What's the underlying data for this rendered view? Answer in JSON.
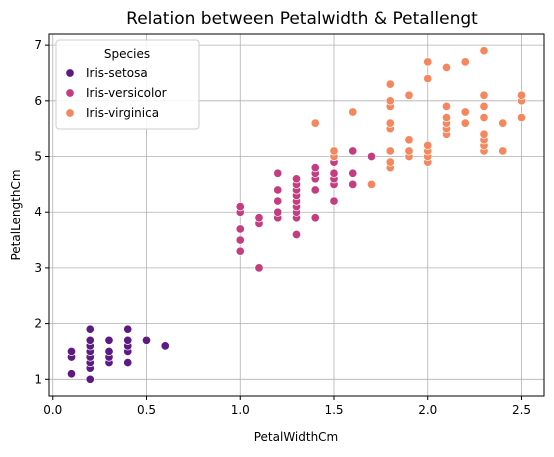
{
  "chart_data": {
    "type": "scatter",
    "title": "Relation between Petalwidth & Petallengt",
    "xlabel": "PetalWidthCm",
    "ylabel": "PetalLengthCm",
    "xlim": [
      -0.02,
      2.62
    ],
    "ylim": [
      0.7,
      7.2
    ],
    "xticks": [
      "0.0",
      "0.5",
      "1.0",
      "1.5",
      "2.0",
      "2.5"
    ],
    "yticks": [
      "1",
      "2",
      "3",
      "4",
      "5",
      "6",
      "7"
    ],
    "grid": true,
    "legend": {
      "title": "Species",
      "placement": "top-left"
    },
    "series": [
      {
        "name": "Iris-setosa",
        "color": "#5c1a83",
        "points": [
          [
            0.1,
            1.1
          ],
          [
            0.1,
            1.4
          ],
          [
            0.1,
            1.5
          ],
          [
            0.2,
            1.0
          ],
          [
            0.2,
            1.2
          ],
          [
            0.2,
            1.3
          ],
          [
            0.2,
            1.4
          ],
          [
            0.2,
            1.5
          ],
          [
            0.2,
            1.6
          ],
          [
            0.2,
            1.7
          ],
          [
            0.2,
            1.9
          ],
          [
            0.3,
            1.3
          ],
          [
            0.3,
            1.4
          ],
          [
            0.3,
            1.5
          ],
          [
            0.3,
            1.7
          ],
          [
            0.4,
            1.3
          ],
          [
            0.4,
            1.5
          ],
          [
            0.4,
            1.6
          ],
          [
            0.4,
            1.7
          ],
          [
            0.4,
            1.9
          ],
          [
            0.5,
            1.7
          ],
          [
            0.6,
            1.6
          ]
        ]
      },
      {
        "name": "Iris-versicolor",
        "color": "#c33d80",
        "points": [
          [
            1.0,
            3.3
          ],
          [
            1.0,
            3.5
          ],
          [
            1.0,
            3.7
          ],
          [
            1.0,
            4.0
          ],
          [
            1.0,
            4.1
          ],
          [
            1.1,
            3.0
          ],
          [
            1.1,
            3.8
          ],
          [
            1.1,
            3.9
          ],
          [
            1.2,
            3.9
          ],
          [
            1.2,
            4.0
          ],
          [
            1.2,
            4.2
          ],
          [
            1.2,
            4.4
          ],
          [
            1.2,
            4.7
          ],
          [
            1.3,
            3.6
          ],
          [
            1.3,
            3.9
          ],
          [
            1.3,
            4.0
          ],
          [
            1.3,
            4.1
          ],
          [
            1.3,
            4.2
          ],
          [
            1.3,
            4.3
          ],
          [
            1.3,
            4.4
          ],
          [
            1.3,
            4.5
          ],
          [
            1.3,
            4.6
          ],
          [
            1.4,
            3.9
          ],
          [
            1.4,
            4.4
          ],
          [
            1.4,
            4.6
          ],
          [
            1.4,
            4.7
          ],
          [
            1.4,
            4.8
          ],
          [
            1.5,
            4.2
          ],
          [
            1.5,
            4.5
          ],
          [
            1.5,
            4.6
          ],
          [
            1.5,
            4.7
          ],
          [
            1.5,
            4.9
          ],
          [
            1.5,
            5.0
          ],
          [
            1.6,
            4.5
          ],
          [
            1.6,
            4.7
          ],
          [
            1.6,
            5.1
          ],
          [
            1.7,
            5.0
          ],
          [
            1.8,
            4.8
          ]
        ]
      },
      {
        "name": "Iris-virginica",
        "color": "#f4875e",
        "points": [
          [
            1.4,
            5.6
          ],
          [
            1.5,
            5.0
          ],
          [
            1.5,
            5.1
          ],
          [
            1.6,
            5.8
          ],
          [
            1.7,
            4.5
          ],
          [
            1.8,
            4.8
          ],
          [
            1.8,
            4.9
          ],
          [
            1.8,
            5.1
          ],
          [
            1.8,
            5.5
          ],
          [
            1.8,
            5.6
          ],
          [
            1.8,
            5.9
          ],
          [
            1.8,
            6.0
          ],
          [
            1.8,
            6.3
          ],
          [
            1.9,
            5.0
          ],
          [
            1.9,
            5.1
          ],
          [
            1.9,
            5.3
          ],
          [
            1.9,
            6.1
          ],
          [
            2.0,
            4.9
          ],
          [
            2.0,
            5.0
          ],
          [
            2.0,
            5.1
          ],
          [
            2.0,
            5.2
          ],
          [
            2.0,
            6.4
          ],
          [
            2.0,
            6.7
          ],
          [
            2.1,
            5.4
          ],
          [
            2.1,
            5.5
          ],
          [
            2.1,
            5.6
          ],
          [
            2.1,
            5.7
          ],
          [
            2.1,
            5.9
          ],
          [
            2.1,
            6.6
          ],
          [
            2.2,
            5.6
          ],
          [
            2.2,
            5.8
          ],
          [
            2.2,
            6.7
          ],
          [
            2.3,
            5.1
          ],
          [
            2.3,
            5.2
          ],
          [
            2.3,
            5.3
          ],
          [
            2.3,
            5.4
          ],
          [
            2.3,
            5.7
          ],
          [
            2.3,
            5.9
          ],
          [
            2.3,
            6.1
          ],
          [
            2.3,
            6.9
          ],
          [
            2.4,
            5.1
          ],
          [
            2.4,
            5.6
          ],
          [
            2.5,
            5.7
          ],
          [
            2.5,
            6.0
          ],
          [
            2.5,
            6.1
          ]
        ]
      }
    ]
  }
}
